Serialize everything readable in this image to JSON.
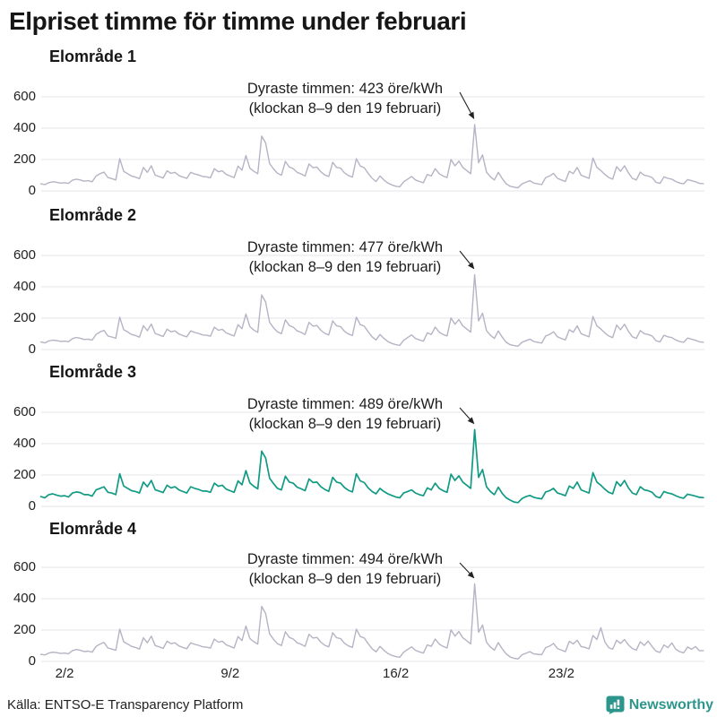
{
  "chart_data": {
    "type": "line",
    "title": "Elpriset timme för timme under februari",
    "unit": "öre/kWh",
    "ylim": [
      0,
      600
    ],
    "y_ticks": [
      0,
      200,
      400,
      600
    ],
    "x_tick_labels": [
      "2/2",
      "9/2",
      "16/2",
      "23/2"
    ],
    "x_tick_days": [
      1,
      8,
      15,
      22
    ],
    "points_per_day": 6,
    "grid": true,
    "colors": {
      "grid": "#e4e3e8",
      "gray_line": "#b6b3c4",
      "teal_line": "#119a84",
      "annotation": "#222222",
      "brand_teal": "#2d968c"
    },
    "panels": [
      {
        "title": "Elområde 1",
        "color": "#b6b3c4",
        "peak_value": 423,
        "peak_index": 110,
        "annotation1": "Dyraste timmen: 423 öre/kWh",
        "annotation2": "(klockan 8–9 den 19 februari)",
        "values": [
          45,
          40,
          52,
          58,
          55,
          50,
          52,
          48,
          68,
          75,
          70,
          62,
          65,
          58,
          95,
          110,
          120,
          85,
          78,
          70,
          205,
          125,
          110,
          95,
          88,
          78,
          150,
          118,
          160,
          100,
          92,
          82,
          128,
          112,
          118,
          98,
          88,
          80,
          118,
          108,
          102,
          92,
          90,
          84,
          142,
          122,
          128,
          105,
          95,
          85,
          158,
          132,
          225,
          145,
          125,
          110,
          350,
          305,
          175,
          140,
          112,
          100,
          188,
          152,
          142,
          118,
          108,
          95,
          172,
          148,
          152,
          122,
          102,
          92,
          182,
          150,
          145,
          115,
          98,
          88,
          205,
          158,
          148,
          112,
          80,
          60,
          95,
          70,
          50,
          38,
          30,
          26,
          58,
          75,
          92,
          70,
          60,
          52,
          105,
          95,
          142,
          110,
          95,
          85,
          200,
          160,
          190,
          150,
          130,
          110,
          423,
          180,
          230,
          120,
          90,
          70,
          118,
          78,
          45,
          30,
          24,
          20,
          45,
          55,
          65,
          50,
          45,
          40,
          85,
          95,
          112,
          80,
          70,
          60,
          125,
          110,
          150,
          100,
          90,
          80,
          210,
          150,
          130,
          105,
          85,
          75,
          155,
          125,
          160,
          115,
          80,
          70,
          120,
          100,
          95,
          85,
          55,
          48,
          90,
          80,
          75,
          60,
          50,
          45,
          72,
          65,
          58,
          48,
          46
        ]
      },
      {
        "title": "Elområde 2",
        "color": "#b6b3c4",
        "peak_value": 477,
        "peak_index": 110,
        "annotation1": "Dyraste timmen: 477 öre/kWh",
        "annotation2": "(klockan 8–9 den 19 februari)",
        "values": [
          48,
          42,
          55,
          60,
          57,
          52,
          54,
          50,
          70,
          77,
          72,
          64,
          66,
          60,
          96,
          112,
          122,
          86,
          80,
          72,
          206,
          126,
          112,
          96,
          89,
          79,
          152,
          120,
          162,
          102,
          93,
          83,
          130,
          113,
          119,
          99,
          89,
          81,
          119,
          109,
          103,
          93,
          91,
          85,
          143,
          123,
          129,
          106,
          96,
          86,
          159,
          133,
          226,
          146,
          124,
          109,
          348,
          303,
          174,
          139,
          113,
          101,
          189,
          153,
          143,
          119,
          109,
          96,
          173,
          149,
          153,
          123,
          103,
          93,
          183,
          151,
          146,
          116,
          99,
          89,
          206,
          159,
          149,
          113,
          81,
          61,
          96,
          71,
          51,
          39,
          31,
          27,
          59,
          76,
          93,
          71,
          61,
          53,
          106,
          96,
          143,
          111,
          96,
          86,
          201,
          161,
          191,
          151,
          131,
          111,
          477,
          182,
          232,
          121,
          91,
          71,
          119,
          79,
          46,
          31,
          25,
          21,
          46,
          56,
          66,
          51,
          46,
          41,
          86,
          96,
          113,
          81,
          71,
          61,
          126,
          111,
          151,
          101,
          91,
          81,
          211,
          151,
          131,
          106,
          86,
          76,
          156,
          126,
          161,
          116,
          81,
          71,
          121,
          101,
          96,
          86,
          56,
          49,
          91,
          81,
          76,
          61,
          51,
          46,
          73,
          66,
          59,
          49,
          47
        ]
      },
      {
        "title": "Elområde 3",
        "color": "#119a84",
        "peak_value": 489,
        "peak_index": 110,
        "annotation1": "Dyraste timmen: 489 öre/kWh",
        "annotation2": "(klockan 8–9 den 19 februari)",
        "values": [
          62,
          55,
          75,
          80,
          72,
          65,
          68,
          60,
          85,
          92,
          88,
          75,
          75,
          65,
          105,
          115,
          125,
          90,
          85,
          75,
          208,
          130,
          115,
          100,
          95,
          85,
          155,
          125,
          165,
          105,
          98,
          88,
          135,
          118,
          125,
          105,
          95,
          85,
          125,
          115,
          108,
          98,
          98,
          90,
          148,
          128,
          135,
          110,
          100,
          90,
          162,
          138,
          228,
          150,
          128,
          112,
          352,
          308,
          180,
          145,
          115,
          105,
          192,
          155,
          148,
          122,
          112,
          100,
          175,
          152,
          155,
          125,
          108,
          96,
          185,
          155,
          148,
          120,
          102,
          92,
          208,
          162,
          152,
          118,
          95,
          80,
          115,
          95,
          80,
          70,
          60,
          55,
          85,
          95,
          105,
          85,
          75,
          68,
          118,
          105,
          148,
          115,
          100,
          90,
          205,
          165,
          195,
          155,
          135,
          115,
          489,
          185,
          235,
          125,
          95,
          75,
          122,
          82,
          55,
          40,
          28,
          24,
          50,
          62,
          70,
          58,
          52,
          48,
          92,
          100,
          115,
          85,
          78,
          68,
          130,
          115,
          155,
          105,
          95,
          85,
          215,
          155,
          135,
          110,
          90,
          80,
          158,
          130,
          165,
          118,
          85,
          75,
          125,
          105,
          100,
          90,
          62,
          55,
          95,
          85,
          80,
          68,
          58,
          52,
          78,
          72,
          65,
          58,
          56
        ]
      },
      {
        "title": "Elområde 4",
        "color": "#b6b3c4",
        "peak_value": 494,
        "peak_index": 110,
        "annotation1": "Dyraste timmen: 494 öre/kWh",
        "annotation2": "(klockan 8–9 den 19 februari)",
        "values": [
          46,
          41,
          53,
          59,
          56,
          51,
          53,
          49,
          69,
          76,
          71,
          63,
          66,
          59,
          96,
          111,
          121,
          86,
          79,
          71,
          206,
          126,
          111,
          96,
          89,
          79,
          151,
          119,
          161,
          101,
          93,
          83,
          129,
          113,
          119,
          99,
          89,
          81,
          119,
          109,
          103,
          93,
          91,
          85,
          143,
          123,
          129,
          106,
          96,
          86,
          159,
          133,
          226,
          146,
          126,
          111,
          351,
          306,
          176,
          141,
          113,
          101,
          189,
          153,
          143,
          119,
          109,
          96,
          173,
          149,
          153,
          123,
          103,
          93,
          183,
          151,
          146,
          116,
          99,
          89,
          206,
          159,
          149,
          113,
          81,
          61,
          96,
          71,
          51,
          39,
          31,
          27,
          59,
          76,
          93,
          71,
          61,
          53,
          106,
          96,
          143,
          111,
          96,
          86,
          201,
          161,
          191,
          151,
          132,
          112,
          494,
          185,
          232,
          122,
          92,
          72,
          120,
          80,
          48,
          28,
          20,
          16,
          42,
          52,
          62,
          48,
          46,
          42,
          88,
          98,
          115,
          82,
          72,
          62,
          128,
          112,
          135,
          95,
          90,
          80,
          165,
          140,
          215,
          125,
          88,
          78,
          135,
          115,
          140,
          105,
          82,
          72,
          125,
          102,
          130,
          95,
          65,
          58,
          105,
          88,
          118,
          78,
          62,
          55,
          92,
          78,
          95,
          68,
          70
        ]
      }
    ]
  },
  "footer": {
    "source": "Källa: ENTSO-E Transparency Platform",
    "brand": "Newsworthy"
  }
}
